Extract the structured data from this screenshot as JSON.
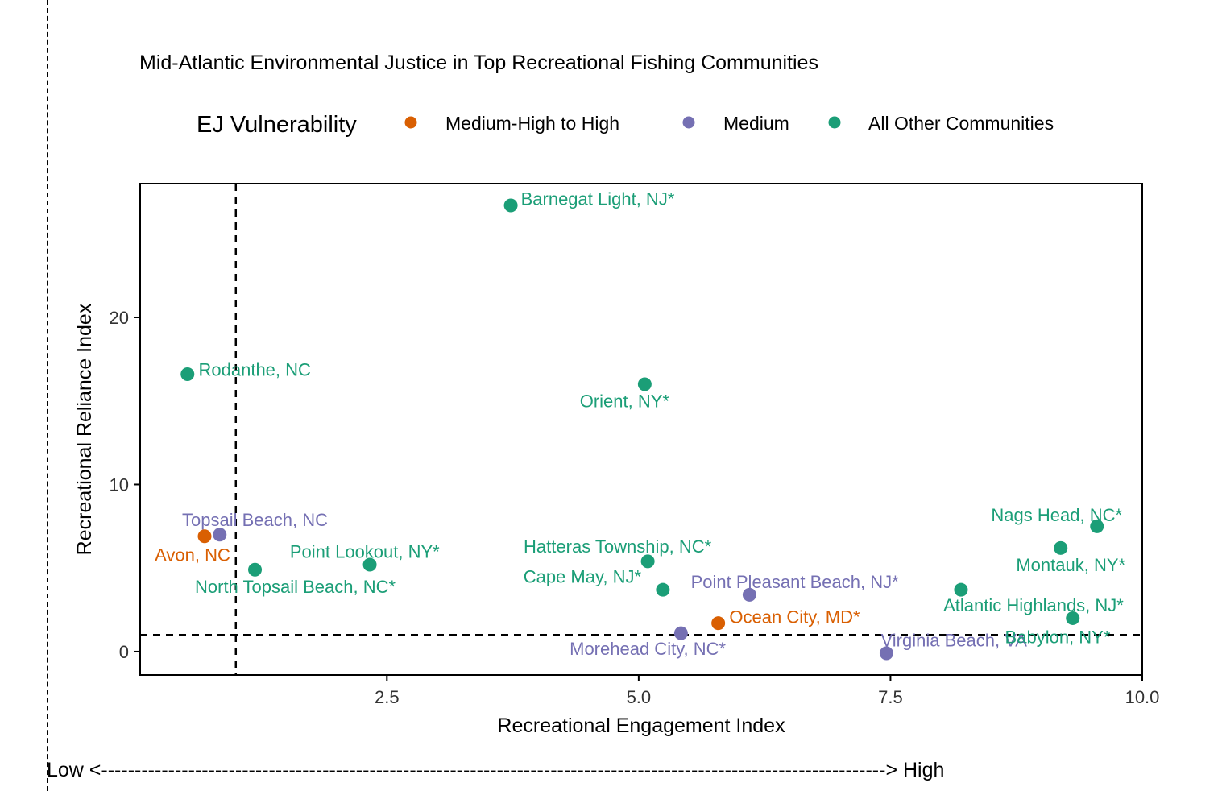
{
  "chart_data": {
    "type": "scatter",
    "title": "Mid-Atlantic Environmental Justice in Top Recreational Fishing Communities",
    "xlabel": "Recreational Engagement Index",
    "ylabel": "Recreational Reliance Index",
    "xlim": [
      0.05,
      10.0
    ],
    "ylim": [
      -1.4,
      28.0
    ],
    "x_ticks": [
      2.5,
      5.0,
      7.5,
      10.0
    ],
    "x_tick_labels": [
      "2.5",
      "5.0",
      "7.5",
      "10.0"
    ],
    "y_ticks": [
      0,
      10,
      20
    ],
    "y_tick_labels": [
      "0",
      "10",
      "20"
    ],
    "grid": false,
    "reference_lines": {
      "x": 1.0,
      "y": 1.0
    },
    "legend": {
      "title": "EJ Vulnerability",
      "placement": "top",
      "entries": [
        {
          "name": "Medium-High to High",
          "color": "#D95F02"
        },
        {
          "name": "Medium",
          "color": "#7570B3"
        },
        {
          "name": "All Other Communities",
          "color": "#1B9E77"
        }
      ]
    },
    "points": [
      {
        "label": "Barnegat Light, NJ*",
        "x": 3.73,
        "y": 26.7,
        "group": 2,
        "anchor": "start",
        "dx": 0.1,
        "dy": 0.4
      },
      {
        "label": "Rodanthe, NC",
        "x": 0.52,
        "y": 16.6,
        "group": 2,
        "anchor": "start",
        "dx": 0.11,
        "dy": 0.3
      },
      {
        "label": "Orient, NY*",
        "x": 5.06,
        "y": 16.0,
        "group": 2,
        "anchor": "middle",
        "dx": -0.2,
        "dy": -1.0
      },
      {
        "label": "Topsail Beach, NC",
        "x": 0.84,
        "y": 7.0,
        "group": 1,
        "anchor": "middle",
        "dx": 0.35,
        "dy": 0.9
      },
      {
        "label": "Avon, NC",
        "x": 0.69,
        "y": 6.9,
        "group": 0,
        "anchor": "middle",
        "dx": -0.12,
        "dy": -1.1
      },
      {
        "label": "North Topsail Beach, NC*",
        "x": 1.19,
        "y": 4.9,
        "group": 2,
        "anchor": "middle",
        "dx": 0.4,
        "dy": -1.0
      },
      {
        "label": "Point Lookout, NY*",
        "x": 2.33,
        "y": 5.2,
        "group": 2,
        "anchor": "middle",
        "dx": -0.05,
        "dy": 0.8
      },
      {
        "label": "Hatteras Township, NC*",
        "x": 5.09,
        "y": 5.4,
        "group": 2,
        "anchor": "middle",
        "dx": -0.3,
        "dy": 0.9
      },
      {
        "label": "Cape May, NJ*",
        "x": 5.24,
        "y": 3.7,
        "group": 2,
        "anchor": "middle",
        "dx": -0.8,
        "dy": 0.8
      },
      {
        "label": "Point Pleasant Beach, NJ*",
        "x": 6.1,
        "y": 3.4,
        "group": 1,
        "anchor": "middle",
        "dx": 0.45,
        "dy": 0.8
      },
      {
        "label": "Ocean City, MD*",
        "x": 5.79,
        "y": 1.7,
        "group": 0,
        "anchor": "start",
        "dx": 0.11,
        "dy": 0.4
      },
      {
        "label": "Morehead City, NC*",
        "x": 5.42,
        "y": 1.1,
        "group": 1,
        "anchor": "middle",
        "dx": -0.33,
        "dy": -0.9
      },
      {
        "label": "Virginia Beach, VA",
        "x": 7.46,
        "y": -0.1,
        "group": 1,
        "anchor": "middle",
        "dx": 0.67,
        "dy": 0.8
      },
      {
        "label": "Nags Head, NC*",
        "x": 9.55,
        "y": 7.5,
        "group": 2,
        "anchor": "middle",
        "dx": -0.4,
        "dy": 0.7
      },
      {
        "label": "Montauk, NY*",
        "x": 9.19,
        "y": 6.2,
        "group": 2,
        "anchor": "middle",
        "dx": 0.1,
        "dy": -1.0
      },
      {
        "label": "Atlantic Highlands, NJ*",
        "x": 8.2,
        "y": 3.7,
        "group": 2,
        "anchor": "middle",
        "dx": 0.72,
        "dy": -0.9
      },
      {
        "label": "Babylon, NY*",
        "x": 9.31,
        "y": 2.0,
        "group": 2,
        "anchor": "middle",
        "dx": -0.15,
        "dy": -1.1
      }
    ]
  },
  "bottom_scale": {
    "text": "Low <---------------------------------------------------------------------------------------------------------------------> High"
  }
}
